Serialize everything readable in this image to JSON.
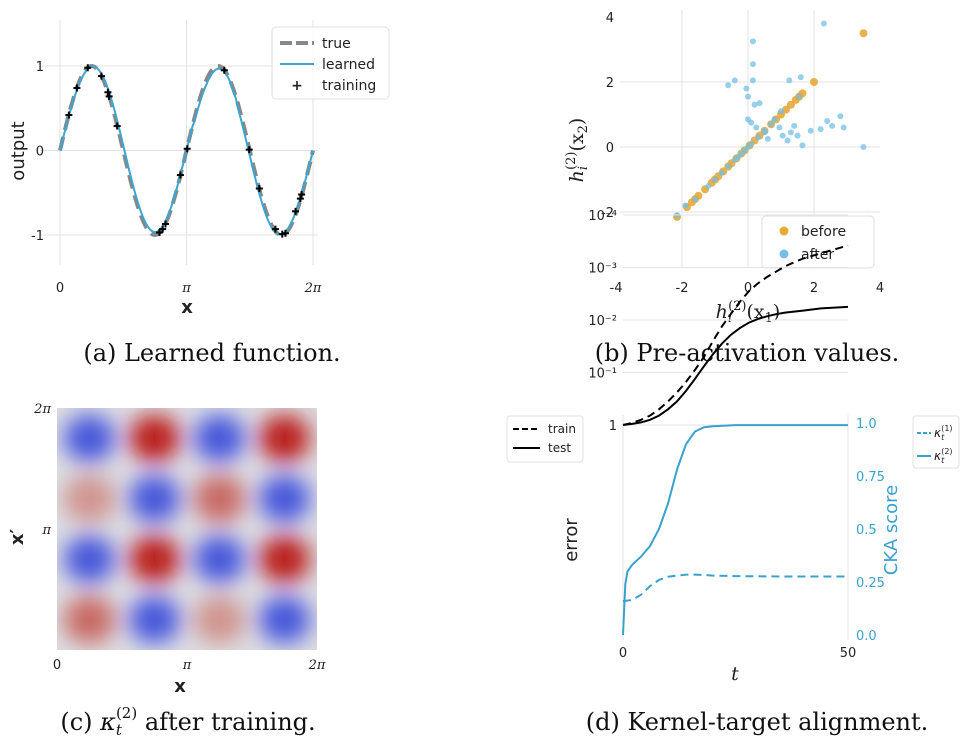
{
  "captions": {
    "a": "(a) Learned function.",
    "b": "(b) Pre-activation values.",
    "c_prefix": "(c) ",
    "c_kappa": "κ",
    "c_sub": "t",
    "c_sup": "(2)",
    "c_suffix": " after training.",
    "d": "(d) Kernel-target alignment."
  },
  "colors": {
    "true": "#888888",
    "learned": "#3da5cf",
    "before": "#e6a93a",
    "after": "#73c0e6",
    "cka": "#3aa1cf",
    "train": "#000000",
    "test": "#000000"
  },
  "chart_data": [
    {
      "id": "a",
      "type": "line",
      "xlabel": "x",
      "ylabel": "output",
      "xticks": [
        "0",
        "π",
        "2π"
      ],
      "yticks": [
        "1",
        "0",
        "-1"
      ],
      "xlim": [
        0,
        6.283
      ],
      "ylim": [
        -1.5,
        1.5
      ],
      "legend": {
        "position": "top-right",
        "entries": [
          "true",
          "learned",
          "training"
        ]
      },
      "series": [
        {
          "name": "true",
          "function": "sin(2x)",
          "x_range": [
            0,
            6.283
          ]
        },
        {
          "name": "learned",
          "function": "approx sin(2x)",
          "x_range": [
            0,
            6.283
          ]
        }
      ],
      "training_points": [
        [
          0.22,
          0.42
        ],
        [
          0.42,
          0.74
        ],
        [
          0.69,
          0.98
        ],
        [
          1.03,
          0.88
        ],
        [
          1.19,
          0.69
        ],
        [
          1.22,
          0.64
        ],
        [
          1.42,
          0.29
        ],
        [
          2.47,
          -0.97
        ],
        [
          2.55,
          -0.93
        ],
        [
          2.62,
          -0.87
        ],
        [
          2.99,
          -0.29
        ],
        [
          3.16,
          0.02
        ],
        [
          4.08,
          0.95
        ],
        [
          4.7,
          0.01
        ],
        [
          4.95,
          -0.45
        ],
        [
          5.35,
          -0.93
        ],
        [
          5.52,
          -0.99
        ],
        [
          5.6,
          -0.98
        ],
        [
          5.85,
          -0.72
        ],
        [
          5.97,
          -0.57
        ],
        [
          6.0,
          -0.52
        ]
      ]
    },
    {
      "id": "b",
      "type": "scatter",
      "xlabel_main": "h",
      "xlabel_sub": "i",
      "xlabel_sup": "(2)",
      "xlabel_arg": "(x",
      "xlabel_arg_sub": "1",
      "xlabel_close": ")",
      "ylabel_main": "h",
      "ylabel_sub": "i",
      "ylabel_sup": "(2)",
      "ylabel_arg": "(x",
      "ylabel_arg_sub": "2",
      "ylabel_close": ")",
      "xticks": [
        "-4",
        "-2",
        "0",
        "2",
        "4"
      ],
      "yticks": [
        "4",
        "2",
        "0",
        "-2"
      ],
      "xlim": [
        -4,
        4
      ],
      "ylim": [
        -2.7,
        4
      ],
      "legend": {
        "position": "bottom-right",
        "entries": [
          "before",
          "after"
        ]
      },
      "series": [
        {
          "name": "before",
          "points": [
            [
              -2.15,
              -2.15
            ],
            [
              -1.85,
              -1.85
            ],
            [
              -1.7,
              -1.7
            ],
            [
              -1.6,
              -1.6
            ],
            [
              -1.5,
              -1.5
            ],
            [
              -1.3,
              -1.3
            ],
            [
              -1.1,
              -1.1
            ],
            [
              -1.0,
              -1.0
            ],
            [
              -0.9,
              -0.9
            ],
            [
              -0.75,
              -0.75
            ],
            [
              -0.6,
              -0.6
            ],
            [
              -0.5,
              -0.5
            ],
            [
              -0.35,
              -0.35
            ],
            [
              -0.2,
              -0.2
            ],
            [
              -0.1,
              -0.1
            ],
            [
              0.05,
              0.05
            ],
            [
              0.2,
              0.2
            ],
            [
              0.35,
              0.35
            ],
            [
              0.5,
              0.5
            ],
            [
              0.7,
              0.7
            ],
            [
              0.85,
              0.85
            ],
            [
              1.0,
              1.0
            ],
            [
              1.15,
              1.15
            ],
            [
              1.3,
              1.3
            ],
            [
              1.45,
              1.45
            ],
            [
              1.55,
              1.55
            ],
            [
              1.65,
              1.65
            ],
            [
              2.0,
              2.0
            ],
            [
              3.5,
              3.5
            ]
          ]
        },
        {
          "name": "after",
          "points": [
            [
              -2.15,
              -2.1
            ],
            [
              -1.9,
              -1.8
            ],
            [
              -1.6,
              -1.6
            ],
            [
              -1.2,
              -1.2
            ],
            [
              -1.0,
              -1.0
            ],
            [
              -0.8,
              -0.8
            ],
            [
              -0.6,
              -0.6
            ],
            [
              -0.4,
              -0.4
            ],
            [
              -0.3,
              -0.3
            ],
            [
              -0.2,
              -0.2
            ],
            [
              -0.1,
              -0.1
            ],
            [
              0.0,
              0.0
            ],
            [
              0.1,
              0.1
            ],
            [
              0.3,
              0.3
            ],
            [
              0.5,
              0.5
            ],
            [
              0.7,
              0.7
            ],
            [
              0.15,
              3.25
            ],
            [
              0.15,
              2.55
            ],
            [
              0.15,
              2.05
            ],
            [
              0.0,
              1.55
            ],
            [
              0.35,
              1.35
            ],
            [
              0.0,
              0.85
            ],
            [
              0.1,
              0.75
            ],
            [
              0.25,
              0.6
            ],
            [
              0.5,
              0.45
            ],
            [
              0.6,
              0.25
            ],
            [
              0.8,
              0.85
            ],
            [
              0.95,
              0.6
            ],
            [
              1.05,
              0.35
            ],
            [
              1.2,
              0.2
            ],
            [
              1.3,
              0.45
            ],
            [
              1.4,
              0.65
            ],
            [
              1.5,
              0.35
            ],
            [
              1.65,
              0.05
            ],
            [
              1.9,
              0.5
            ],
            [
              2.2,
              0.55
            ],
            [
              2.4,
              0.8
            ],
            [
              2.55,
              0.65
            ],
            [
              2.8,
              0.95
            ],
            [
              2.9,
              0.6
            ],
            [
              3.5,
              0.0
            ],
            [
              2.3,
              3.8
            ],
            [
              1.6,
              2.15
            ],
            [
              1.55,
              1.55
            ],
            [
              1.25,
              2.05
            ],
            [
              -0.4,
              2.05
            ],
            [
              -0.6,
              1.9
            ],
            [
              -0.05,
              1.8
            ],
            [
              0.2,
              1.3
            ],
            [
              1.0,
              1.1
            ]
          ]
        }
      ]
    },
    {
      "id": "c",
      "type": "heatmap",
      "xlabel": "x",
      "ylabel": "x′",
      "xticks": [
        "0",
        "π",
        "2π"
      ],
      "yticks": [
        "2π",
        "π"
      ],
      "function": "≈ cos(2x)·cos(2x′) pattern, red = high, blue = low",
      "colormap": "coolwarm"
    },
    {
      "id": "d",
      "type": "line",
      "xlabel": "t",
      "ylabel_left": "error",
      "ylabel_right": "CKA score",
      "xticks": [
        "0",
        "50"
      ],
      "yticks_left": [
        "1",
        "10⁻¹",
        "10⁻²",
        "10⁻³",
        "10⁻⁴"
      ],
      "yticks_right": [
        "1.0",
        "0.75",
        "0.5",
        "0.25",
        "0.0"
      ],
      "xlim": [
        0,
        50
      ],
      "ylim_left_log10": [
        -4,
        0.2
      ],
      "ylim_right": [
        0,
        1.05
      ],
      "legend_left": {
        "position": "top-left outside",
        "entries": [
          "train",
          "test"
        ]
      },
      "legend_right": {
        "position": "top-right outside",
        "entries": [
          "κt(1)",
          "κt(2)"
        ]
      },
      "series": [
        {
          "name": "train",
          "axis": "left",
          "style": "dashed",
          "x": [
            0,
            2,
            4,
            6,
            8,
            10,
            12,
            14,
            16,
            18,
            20,
            22,
            24,
            26,
            28,
            30,
            32,
            34,
            36,
            38,
            40,
            42,
            44,
            46,
            48,
            50
          ],
          "log10_y": [
            0,
            -0.04,
            -0.1,
            -0.18,
            -0.3,
            -0.45,
            -0.62,
            -0.82,
            -1.05,
            -1.3,
            -1.6,
            -1.88,
            -2.12,
            -2.35,
            -2.55,
            -2.7,
            -2.82,
            -2.92,
            -3.02,
            -3.1,
            -3.17,
            -3.22,
            -3.27,
            -3.32,
            -3.37,
            -3.42
          ]
        },
        {
          "name": "test",
          "axis": "left",
          "style": "solid",
          "x": [
            0,
            2,
            4,
            6,
            8,
            10,
            12,
            14,
            16,
            18,
            20,
            22,
            24,
            26,
            28,
            30,
            32,
            34,
            36,
            38,
            40,
            42,
            44,
            46,
            48,
            50
          ],
          "log10_y": [
            0,
            -0.02,
            -0.05,
            -0.1,
            -0.18,
            -0.3,
            -0.45,
            -0.65,
            -0.88,
            -1.12,
            -1.35,
            -1.55,
            -1.72,
            -1.85,
            -1.95,
            -2.02,
            -2.07,
            -2.11,
            -2.14,
            -2.16,
            -2.18,
            -2.2,
            -2.22,
            -2.23,
            -2.24,
            -2.25
          ]
        },
        {
          "name": "κt(1)",
          "axis": "right",
          "style": "dashed",
          "x": [
            0,
            2,
            4,
            6,
            8,
            10,
            12,
            14,
            16,
            18,
            20,
            25,
            30,
            35,
            40,
            45,
            50
          ],
          "y": [
            0.16,
            0.165,
            0.19,
            0.23,
            0.26,
            0.275,
            0.28,
            0.285,
            0.285,
            0.283,
            0.28,
            0.278,
            0.277,
            0.276,
            0.276,
            0.276,
            0.276
          ]
        },
        {
          "name": "κt(2)",
          "axis": "right",
          "style": "solid",
          "x": [
            0,
            0.5,
            1,
            2,
            4,
            6,
            8,
            10,
            12,
            14,
            16,
            18,
            20,
            25,
            30,
            35,
            40,
            45,
            50
          ],
          "y": [
            0.0,
            0.24,
            0.3,
            0.33,
            0.37,
            0.42,
            0.5,
            0.62,
            0.78,
            0.9,
            0.96,
            0.98,
            0.985,
            0.99,
            0.99,
            0.99,
            0.99,
            0.99,
            0.99
          ]
        }
      ]
    }
  ]
}
